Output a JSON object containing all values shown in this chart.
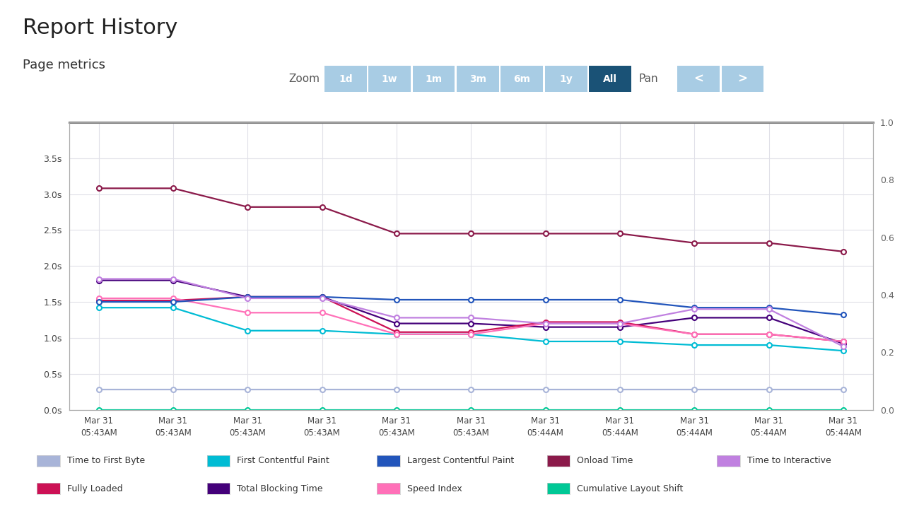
{
  "title": "Report History",
  "subtitle": "Page metrics",
  "x_labels": [
    "Mar 31\n05:43AM",
    "Mar 31\n05:43AM",
    "Mar 31\n05:43AM",
    "Mar 31\n05:43AM",
    "Mar 31\n05:43AM",
    "Mar 31\n05:43AM",
    "Mar 31\n05:44AM",
    "Mar 31\n05:44AM",
    "Mar 31\n05:44AM",
    "Mar 31\n05:44AM",
    "Mar 31\n05:44AM"
  ],
  "series": {
    "Time to First Byte": {
      "color": "#a8b4d8",
      "values": [
        0.28,
        0.28,
        0.28,
        0.28,
        0.28,
        0.28,
        0.28,
        0.28,
        0.28,
        0.28,
        0.28
      ],
      "zorder": 3
    },
    "First Contentful Paint": {
      "color": "#00bcd4",
      "values": [
        1.42,
        1.42,
        1.1,
        1.1,
        1.05,
        1.05,
        0.95,
        0.95,
        0.9,
        0.9,
        0.82
      ],
      "zorder": 4
    },
    "Largest Contentful Paint": {
      "color": "#2255bb",
      "values": [
        1.5,
        1.5,
        1.57,
        1.57,
        1.53,
        1.53,
        1.53,
        1.53,
        1.42,
        1.42,
        1.32
      ],
      "zorder": 5
    },
    "Onload Time": {
      "color": "#8b1a4a",
      "values": [
        3.08,
        3.08,
        2.82,
        2.82,
        2.45,
        2.45,
        2.45,
        2.45,
        2.32,
        2.32,
        2.2
      ],
      "zorder": 6
    },
    "Time to Interactive": {
      "color": "#c080e0",
      "values": [
        1.82,
        1.82,
        1.55,
        1.55,
        1.28,
        1.28,
        1.2,
        1.2,
        1.4,
        1.4,
        0.88
      ],
      "zorder": 5
    },
    "Fully Loaded": {
      "color": "#cc1155",
      "values": [
        1.52,
        1.52,
        1.57,
        1.57,
        1.08,
        1.08,
        1.22,
        1.22,
        1.05,
        1.05,
        0.95
      ],
      "zorder": 4
    },
    "Total Blocking Time": {
      "color": "#44007a",
      "values": [
        1.8,
        1.8,
        1.57,
        1.57,
        1.2,
        1.2,
        1.15,
        1.15,
        1.28,
        1.28,
        0.92
      ],
      "zorder": 3
    },
    "Speed Index": {
      "color": "#ff70b8",
      "values": [
        1.55,
        1.55,
        1.35,
        1.35,
        1.05,
        1.05,
        1.2,
        1.2,
        1.05,
        1.05,
        0.95
      ],
      "zorder": 4
    },
    "Cumulative Layout Shift": {
      "color": "#00c896",
      "values": [
        0.0,
        0.0,
        0.0,
        0.0,
        0.0,
        0.0,
        0.0,
        0.0,
        0.0,
        0.0,
        0.0
      ],
      "zorder": 6
    }
  },
  "ylim_left": [
    0,
    4.0
  ],
  "ylim_right": [
    0,
    1.0
  ],
  "yticks_left": [
    0.0,
    0.5,
    1.0,
    1.5,
    2.0,
    2.5,
    3.0,
    3.5
  ],
  "ytick_labels_left": [
    "0.0s",
    "0.5s",
    "1.0s",
    "1.5s",
    "2.0s",
    "2.5s",
    "3.0s",
    "3.5s"
  ],
  "yticks_right": [
    0.0,
    0.2,
    0.4,
    0.6,
    0.8,
    1.0
  ],
  "ytick_labels_right": [
    "0.0",
    "0.2",
    "0.4",
    "0.6",
    "0.8",
    "1.0"
  ],
  "background_color": "#ffffff",
  "plot_bg_color": "#ffffff",
  "grid_color": "#e0e0e8",
  "legend_row1": [
    [
      "Time to First Byte",
      "#a8b4d8"
    ],
    [
      "First Contentful Paint",
      "#00bcd4"
    ],
    [
      "Largest Contentful Paint",
      "#2255bb"
    ],
    [
      "Onload Time",
      "#8b1a4a"
    ],
    [
      "Time to Interactive",
      "#c080e0"
    ]
  ],
  "legend_row2": [
    [
      "Fully Loaded",
      "#cc1155"
    ],
    [
      "Total Blocking Time",
      "#44007a"
    ],
    [
      "Speed Index",
      "#ff70b8"
    ],
    [
      "Cumulative Layout Shift",
      "#00c896"
    ]
  ],
  "zoom_buttons": [
    "1d",
    "1w",
    "1m",
    "3m",
    "6m",
    "1y"
  ],
  "zoom_active": "All",
  "pan_label": "Pan",
  "pan_buttons": [
    "<",
    ">"
  ],
  "button_inactive_color": "#a8cce4",
  "button_active_color": "#1a5276",
  "button_text_color": "#ffffff"
}
